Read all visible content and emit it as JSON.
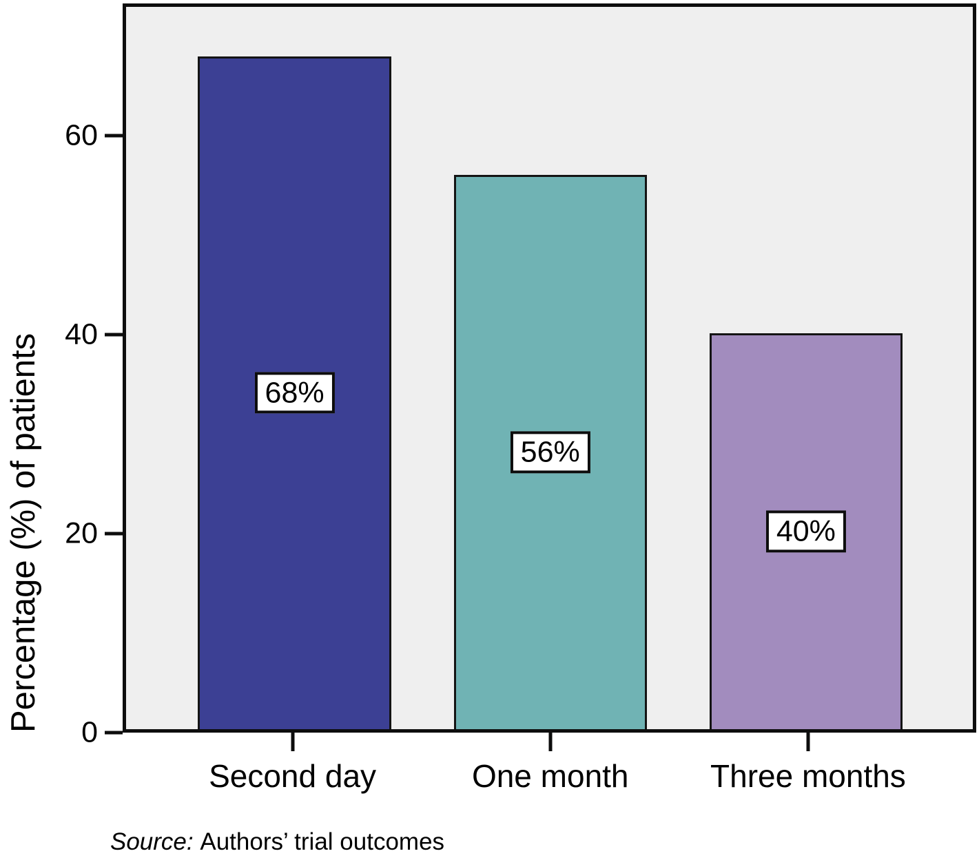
{
  "chart_data": {
    "type": "bar",
    "title": "",
    "categories": [
      "Second day",
      "One month",
      "Three months"
    ],
    "values": [
      68,
      56,
      40
    ],
    "bar_labels": [
      "68%",
      "56%",
      "40%"
    ],
    "bar_colors": [
      "#3c4094",
      "#70b3b4",
      "#a28cbe"
    ],
    "xlabel": "",
    "ylabel": "Percentage (%) of patients",
    "ylim": [
      0,
      73
    ],
    "yticks": [
      0,
      20,
      40,
      60
    ],
    "grid": false,
    "legend": "none",
    "plot_background": "#efefef",
    "source_note": {
      "prefix": "Source:",
      "body": "Authors’ trial outcomes"
    }
  }
}
